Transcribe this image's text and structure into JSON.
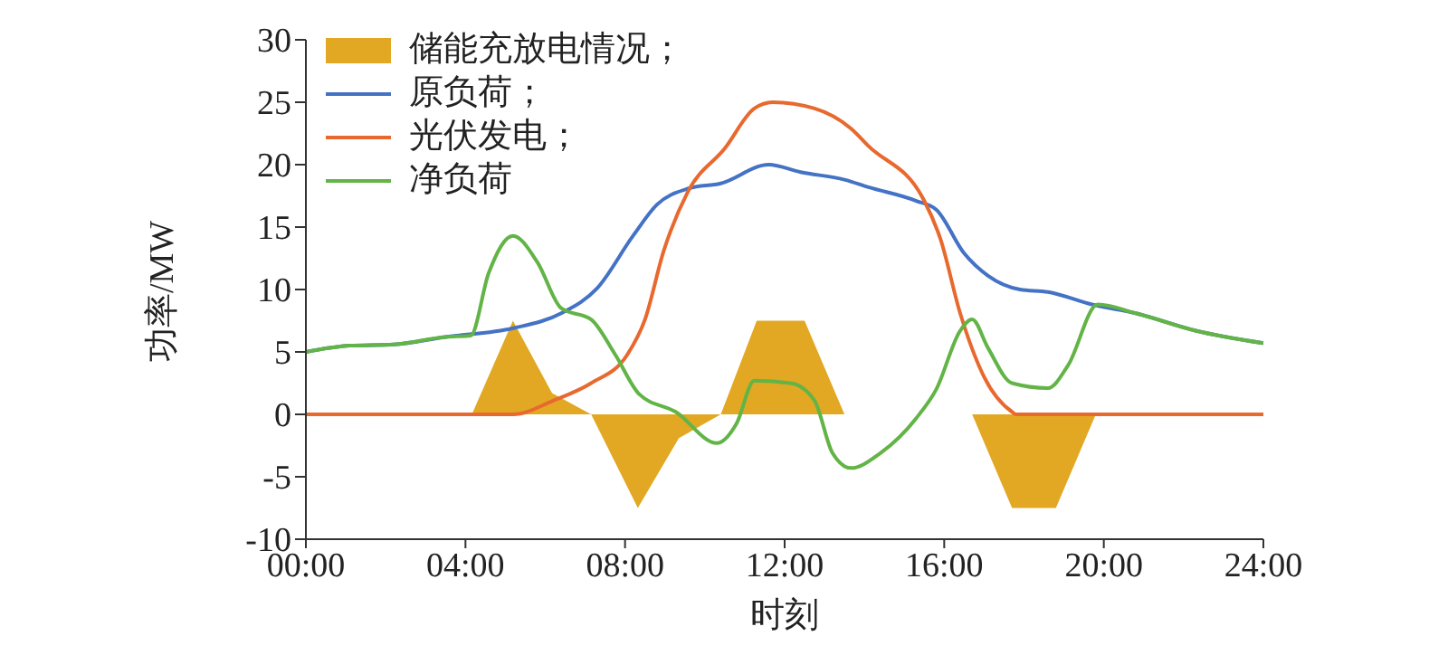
{
  "chart_data": {
    "type": "line",
    "xlabel": "时刻",
    "ylabel": "功率/MW",
    "xlim": [
      0,
      24
    ],
    "xticks": [
      {
        "value": 0,
        "label": "00:00"
      },
      {
        "value": 4,
        "label": "04:00"
      },
      {
        "value": 8,
        "label": "08:00"
      },
      {
        "value": 12,
        "label": "12:00"
      },
      {
        "value": 16,
        "label": "16:00"
      },
      {
        "value": 20,
        "label": "20:00"
      },
      {
        "value": 24,
        "label": "24:00"
      }
    ],
    "ylim": [
      -10,
      30
    ],
    "yticks": [
      -10,
      -5,
      0,
      5,
      10,
      15,
      20,
      25,
      30
    ],
    "grid": false,
    "legend": "top left",
    "marker": "none",
    "line_style": "solid",
    "series": [
      {
        "name": "储能充放电情况；",
        "type": "area",
        "color": "#e2a823",
        "x": [
          0,
          4.16,
          5.19,
          6.17,
          7.15,
          8.32,
          9.35,
          10.4,
          11.3,
          12.5,
          13.5,
          16.7,
          17.7,
          18.8,
          19.8,
          24
        ],
        "values": [
          0,
          0,
          7.5,
          1.7,
          0,
          -7.5,
          -1.9,
          0,
          7.5,
          7.5,
          0,
          0,
          -7.5,
          -7.5,
          0,
          0
        ]
      },
      {
        "name": "原负荷；",
        "color": "#4472c4",
        "x": [
          0,
          1.1,
          2.2,
          3.5,
          5.2,
          6.4,
          7.3,
          8.2,
          8.8,
          9.6,
          10.4,
          11.6,
          12.4,
          13.5,
          14.1,
          15.3,
          15.8,
          16.5,
          17.1,
          17.9,
          18.6,
          19.7,
          20.8,
          22.3,
          24
        ],
        "values": [
          5,
          5.5,
          5.6,
          6.2,
          6.9,
          8.1,
          10.1,
          14.3,
          16.8,
          18.1,
          18.5,
          20,
          19.4,
          18.8,
          18.2,
          17.1,
          16.4,
          12.9,
          11.1,
          10,
          9.8,
          8.8,
          8.1,
          6.7,
          5.7
        ]
      },
      {
        "name": "光伏发电；",
        "color": "#e8692e",
        "x": [
          0,
          5.2,
          6.2,
          7.15,
          8.06,
          8.5,
          8.97,
          9.57,
          10.5,
          11.24,
          11.7,
          12.75,
          13.66,
          14.1,
          15.5,
          15.9,
          16.4,
          17,
          17.7,
          17.8,
          24
        ],
        "values": [
          0,
          0,
          1.1,
          2.5,
          4.8,
          7.6,
          13.1,
          17.8,
          21.3,
          24.5,
          25,
          24.5,
          22.9,
          21.5,
          17.1,
          14.1,
          8.1,
          3,
          0.2,
          0,
          0
        ]
      },
      {
        "name": "净负荷",
        "color": "#62b446",
        "x": [
          0,
          1.1,
          2.2,
          3.5,
          4.13,
          4.58,
          5.19,
          5.8,
          6.4,
          7.15,
          7.75,
          8.36,
          9.27,
          10.3,
          10.8,
          11.24,
          12.15,
          12.75,
          13.2,
          13.66,
          14.4,
          15.3,
          15.8,
          16.4,
          16.7,
          17.1,
          17.7,
          18.6,
          19.1,
          19.85,
          20.8,
          22.3,
          24
        ],
        "values": [
          5,
          5.5,
          5.6,
          6.2,
          6.3,
          11.3,
          14.3,
          12.2,
          8.5,
          7.6,
          4.8,
          1.6,
          0.2,
          -2.3,
          -0.7,
          2.7,
          2.5,
          1.1,
          -3.1,
          -4.3,
          -3.1,
          -0.3,
          2,
          6.7,
          7.6,
          5.3,
          2.5,
          2.1,
          3.9,
          8.8,
          8.1,
          6.7,
          5.7
        ]
      }
    ]
  }
}
